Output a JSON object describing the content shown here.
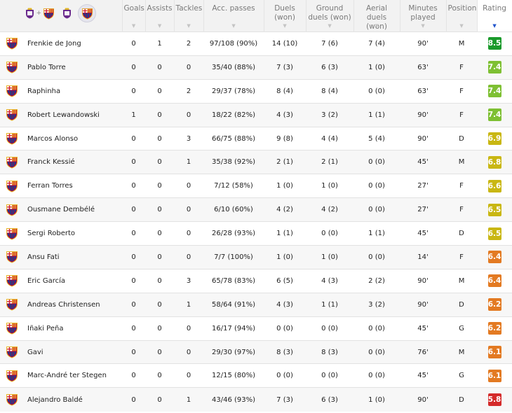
{
  "header": {
    "goals": "Goals",
    "assists": "Assists",
    "tackles": "Tackles",
    "acc_passes": "Acc. passes",
    "duels": "Duels (won)",
    "ground_duels": "Ground duels (won)",
    "aerial_duels": "Aerial duels (won)",
    "minutes": "Minutes played",
    "position": "Position",
    "rating": "Rating"
  },
  "colors": {
    "dark_green": "#1a9a2b",
    "green": "#7ec033",
    "yellow": "#c9b713",
    "orange": "#e37a22",
    "red": "#d42a2a"
  },
  "players": [
    {
      "name": "Frenkie de Jong",
      "goals": "0",
      "assists": "1",
      "tackles": "2",
      "passes": "97/108 (90%)",
      "duels": "14 (10)",
      "ground": "7 (6)",
      "aerial": "7 (4)",
      "minutes": "90'",
      "position": "M",
      "rating": "8.5",
      "rating_color": "#1a9a2b"
    },
    {
      "name": "Pablo Torre",
      "goals": "0",
      "assists": "0",
      "tackles": "0",
      "passes": "35/40 (88%)",
      "duels": "7 (3)",
      "ground": "6 (3)",
      "aerial": "1 (0)",
      "minutes": "63'",
      "position": "F",
      "rating": "7.4",
      "rating_color": "#7ec033"
    },
    {
      "name": "Raphinha",
      "goals": "0",
      "assists": "0",
      "tackles": "2",
      "passes": "29/37 (78%)",
      "duels": "8 (4)",
      "ground": "8 (4)",
      "aerial": "0 (0)",
      "minutes": "63'",
      "position": "F",
      "rating": "7.4",
      "rating_color": "#7ec033"
    },
    {
      "name": "Robert Lewandowski",
      "goals": "1",
      "assists": "0",
      "tackles": "0",
      "passes": "18/22 (82%)",
      "duels": "4 (3)",
      "ground": "3 (2)",
      "aerial": "1 (1)",
      "minutes": "90'",
      "position": "F",
      "rating": "7.4",
      "rating_color": "#7ec033"
    },
    {
      "name": "Marcos Alonso",
      "goals": "0",
      "assists": "0",
      "tackles": "3",
      "passes": "66/75 (88%)",
      "duels": "9 (8)",
      "ground": "4 (4)",
      "aerial": "5 (4)",
      "minutes": "90'",
      "position": "D",
      "rating": "6.9",
      "rating_color": "#c9b713"
    },
    {
      "name": "Franck Kessié",
      "goals": "0",
      "assists": "0",
      "tackles": "1",
      "passes": "35/38 (92%)",
      "duels": "2 (1)",
      "ground": "2 (1)",
      "aerial": "0 (0)",
      "minutes": "45'",
      "position": "M",
      "rating": "6.8",
      "rating_color": "#c9b713"
    },
    {
      "name": "Ferran Torres",
      "goals": "0",
      "assists": "0",
      "tackles": "0",
      "passes": "7/12 (58%)",
      "duels": "1 (0)",
      "ground": "1 (0)",
      "aerial": "0 (0)",
      "minutes": "27'",
      "position": "F",
      "rating": "6.6",
      "rating_color": "#c9b713"
    },
    {
      "name": "Ousmane Dembélé",
      "goals": "0",
      "assists": "0",
      "tackles": "0",
      "passes": "6/10 (60%)",
      "duels": "4 (2)",
      "ground": "4 (2)",
      "aerial": "0 (0)",
      "minutes": "27'",
      "position": "F",
      "rating": "6.5",
      "rating_color": "#c9b713"
    },
    {
      "name": "Sergi Roberto",
      "goals": "0",
      "assists": "0",
      "tackles": "0",
      "passes": "26/28 (93%)",
      "duels": "1 (1)",
      "ground": "0 (0)",
      "aerial": "1 (1)",
      "minutes": "45'",
      "position": "D",
      "rating": "6.5",
      "rating_color": "#c9b713"
    },
    {
      "name": "Ansu Fati",
      "goals": "0",
      "assists": "0",
      "tackles": "0",
      "passes": "7/7 (100%)",
      "duels": "1 (0)",
      "ground": "1 (0)",
      "aerial": "0 (0)",
      "minutes": "14'",
      "position": "F",
      "rating": "6.4",
      "rating_color": "#e37a22"
    },
    {
      "name": "Eric García",
      "goals": "0",
      "assists": "0",
      "tackles": "3",
      "passes": "65/78 (83%)",
      "duels": "6 (5)",
      "ground": "4 (3)",
      "aerial": "2 (2)",
      "minutes": "90'",
      "position": "M",
      "rating": "6.4",
      "rating_color": "#e37a22"
    },
    {
      "name": "Andreas Christensen",
      "goals": "0",
      "assists": "0",
      "tackles": "1",
      "passes": "58/64 (91%)",
      "duels": "4 (3)",
      "ground": "1 (1)",
      "aerial": "3 (2)",
      "minutes": "90'",
      "position": "D",
      "rating": "6.2",
      "rating_color": "#e37a22"
    },
    {
      "name": "Iñaki Peña",
      "goals": "0",
      "assists": "0",
      "tackles": "0",
      "passes": "16/17 (94%)",
      "duels": "0 (0)",
      "ground": "0 (0)",
      "aerial": "0 (0)",
      "minutes": "45'",
      "position": "G",
      "rating": "6.2",
      "rating_color": "#e37a22"
    },
    {
      "name": "Gavi",
      "goals": "0",
      "assists": "0",
      "tackles": "0",
      "passes": "29/30 (97%)",
      "duels": "8 (3)",
      "ground": "8 (3)",
      "aerial": "0 (0)",
      "minutes": "76'",
      "position": "M",
      "rating": "6.1",
      "rating_color": "#e37a22"
    },
    {
      "name": "Marc-André ter Stegen",
      "goals": "0",
      "assists": "0",
      "tackles": "0",
      "passes": "12/15 (80%)",
      "duels": "0 (0)",
      "ground": "0 (0)",
      "aerial": "0 (0)",
      "minutes": "45'",
      "position": "G",
      "rating": "6.1",
      "rating_color": "#e37a22"
    },
    {
      "name": "Alejandro Baldé",
      "goals": "0",
      "assists": "0",
      "tackles": "1",
      "passes": "43/46 (93%)",
      "duels": "7 (3)",
      "ground": "6 (3)",
      "aerial": "1 (0)",
      "minutes": "90'",
      "position": "D",
      "rating": "5.8",
      "rating_color": "#d42a2a"
    }
  ]
}
